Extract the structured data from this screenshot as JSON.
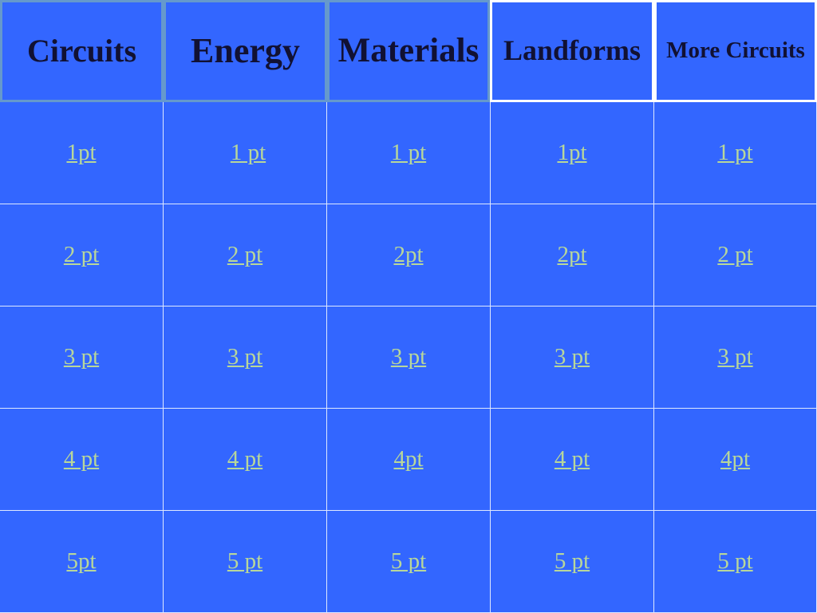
{
  "categories": [
    {
      "label": "Circuits",
      "color": "teal"
    },
    {
      "label": "Energy",
      "color": "teal"
    },
    {
      "label": "Materials",
      "color": "teal"
    },
    {
      "label": "Landforms",
      "color": "white"
    },
    {
      "label": "More Circuits",
      "color": "white"
    }
  ],
  "rows": [
    [
      "1pt",
      "1 pt",
      "1 pt",
      "1pt",
      "1 pt"
    ],
    [
      "2 pt",
      "2 pt",
      "2pt",
      "2pt",
      "2 pt"
    ],
    [
      "3 pt",
      "3 pt",
      "3 pt",
      "3 pt",
      "3 pt"
    ],
    [
      "4 pt",
      "4 pt",
      "4pt",
      "4 pt",
      "4pt"
    ],
    [
      "5pt",
      "5 pt",
      "5 pt",
      "5 pt",
      "5 pt"
    ]
  ],
  "colors": {
    "background": "#3366ff",
    "link": "#b8d79a",
    "header_text": "#111133"
  }
}
